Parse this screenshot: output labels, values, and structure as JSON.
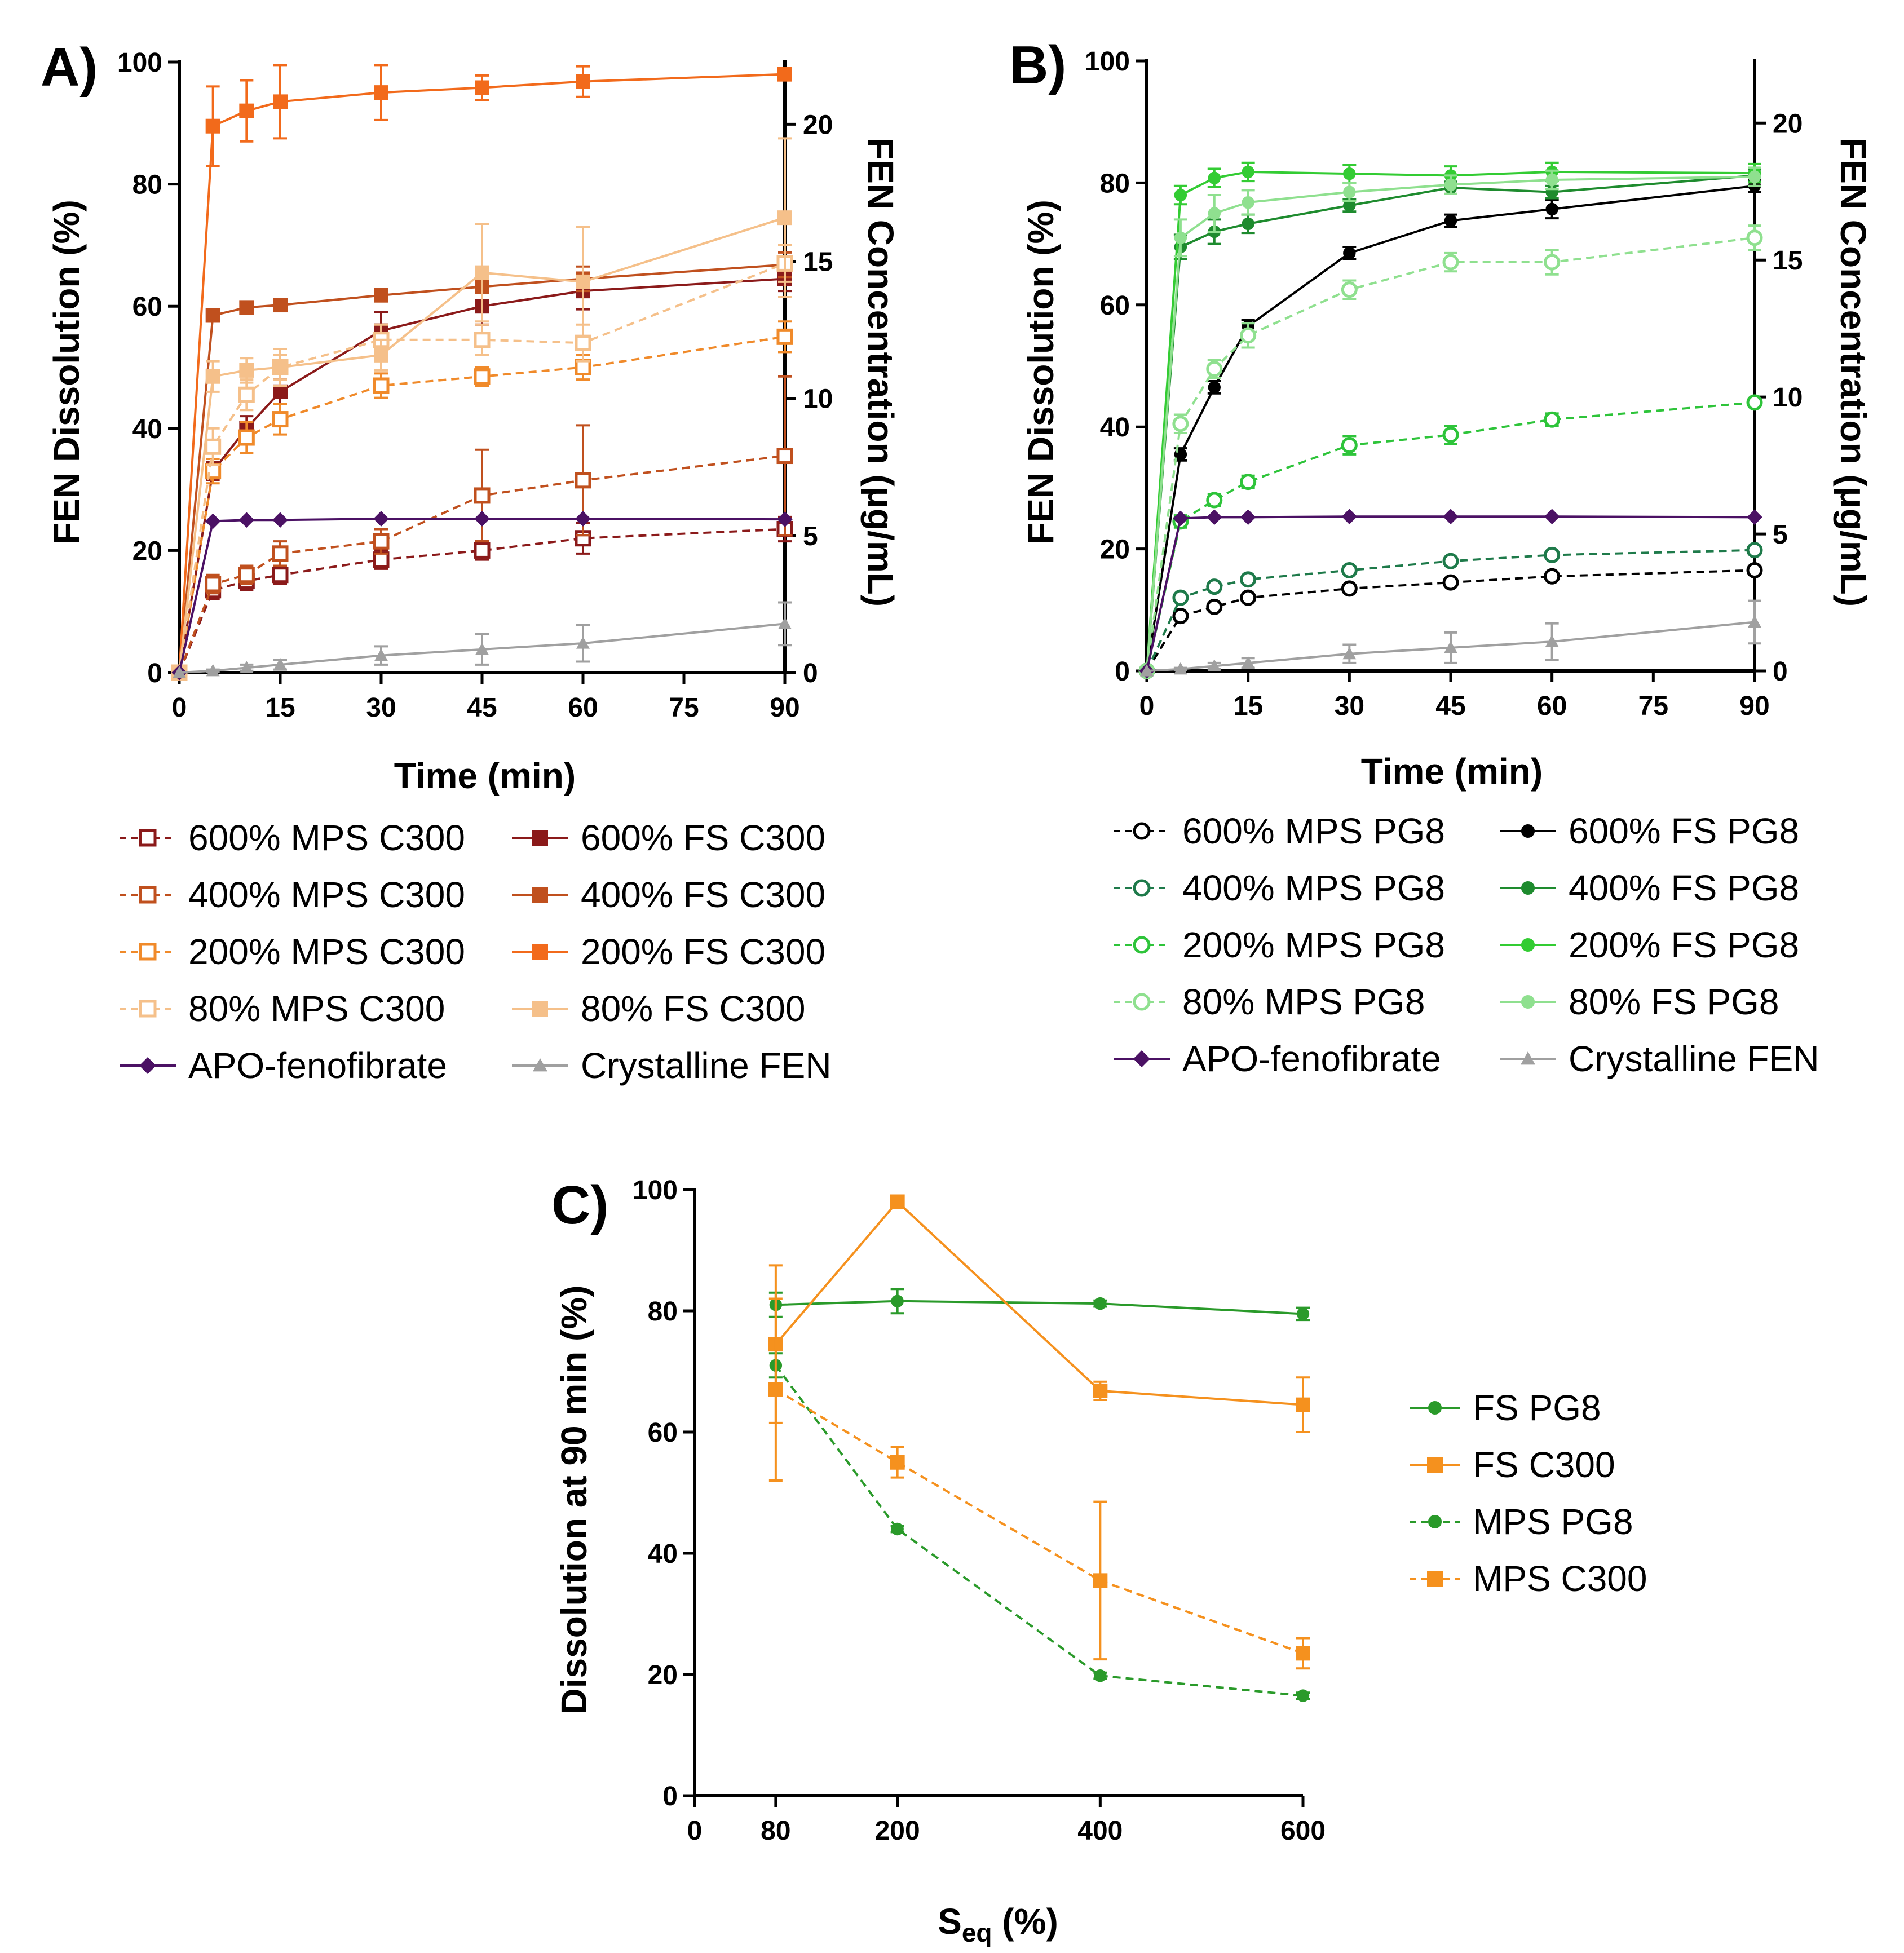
{
  "colors": {
    "mps600c": "#8B1A1A",
    "mps400c": "#C0501E",
    "mps200c": "#F08A2A",
    "mps80c": "#F5C08A",
    "fs600c": "#8B1A1A",
    "fs400c": "#C0501E",
    "fs200c": "#F26A1B",
    "fs80c": "#F5C08A",
    "apo": "#4B1164",
    "cryst": "#A0A0A0",
    "mps600p": "#000000",
    "mps400p": "#1E7A4A",
    "mps200p": "#2EC43A",
    "mps80p": "#8FE08F",
    "fs600p": "#000000",
    "fs400p": "#1E8B2E",
    "fs200p": "#33CC33",
    "fs80p": "#8FE08F",
    "fspg8c": "#2A9A2A",
    "fsc300c": "#F5911E"
  },
  "chart_data": [
    {
      "type": "line",
      "panel": "A)",
      "xlabel": "Time (min)",
      "ylabel": "FEN Dissolution (%)",
      "y2label": "FEN Concentration (μg/mL)",
      "xlim": [
        0,
        90
      ],
      "ylim": [
        0,
        100
      ],
      "y2lim": [
        0,
        22.27
      ],
      "xticks": [
        "0",
        "15",
        "30",
        "45",
        "60",
        "75",
        "90"
      ],
      "yticks": [
        "0",
        "20",
        "40",
        "60",
        "80",
        "100"
      ],
      "y2ticks": [
        "0",
        "5",
        "10",
        "15",
        "20"
      ],
      "x": [
        0,
        5,
        10,
        15,
        30,
        45,
        60,
        90
      ],
      "series": [
        {
          "name": "600% MPS C300",
          "style": "dashed",
          "marker": "open-square",
          "color_key": "mps600c",
          "values": [
            0,
            13.5,
            15,
            16,
            18.5,
            20,
            22,
            23.5
          ],
          "errors": [
            0,
            1.5,
            1.5,
            1.5,
            1.5,
            1.5,
            2.5,
            2
          ]
        },
        {
          "name": "600% FS C300",
          "style": "solid",
          "marker": "filled-square",
          "color_key": "fs600c",
          "values": [
            0,
            33,
            40,
            46,
            56,
            60,
            62.5,
            64.5
          ],
          "errors": [
            0,
            1.5,
            2,
            2,
            3,
            3,
            3,
            2
          ]
        },
        {
          "name": "400% MPS C300",
          "style": "dashed",
          "marker": "open-square",
          "color_key": "mps400c",
          "values": [
            0,
            14.5,
            16,
            19.5,
            21.5,
            29,
            31.5,
            35.5
          ],
          "errors": [
            0,
            1.5,
            1.5,
            2,
            2,
            7.5,
            9,
            13
          ]
        },
        {
          "name": "400% FS C300",
          "style": "solid",
          "marker": "filled-square",
          "color_key": "fs400c",
          "values": [
            0,
            58.5,
            59.8,
            60.2,
            61.8,
            63.2,
            64.5,
            66.8
          ],
          "errors": [
            0,
            1,
            1,
            1,
            1,
            1,
            2,
            2
          ]
        },
        {
          "name": "200% MPS C300",
          "style": "dashed",
          "marker": "open-square",
          "color_key": "mps200c",
          "values": [
            0,
            33,
            38.5,
            41.5,
            47,
            48.5,
            50,
            55
          ],
          "errors": [
            0,
            2,
            2.5,
            2.5,
            2,
            1.5,
            2,
            2.5
          ]
        },
        {
          "name": "200% FS C300",
          "style": "solid",
          "marker": "filled-square",
          "color_key": "fs200c",
          "values": [
            0,
            89.5,
            92,
            93.5,
            95,
            95.8,
            96.8,
            98
          ],
          "errors": [
            0,
            6.5,
            5,
            6,
            4.5,
            2,
            2.5,
            1
          ]
        },
        {
          "name": "80% MPS C300",
          "style": "dashed",
          "marker": "open-square",
          "color_key": "mps80c",
          "values": [
            0,
            37,
            45.5,
            50,
            54.5,
            54.5,
            54,
            67
          ],
          "errors": [
            0,
            3,
            2.5,
            3,
            2.5,
            2.5,
            3,
            3
          ]
        },
        {
          "name": "80% FS C300",
          "style": "solid",
          "marker": "filled-square",
          "color_key": "fs80c",
          "values": [
            0,
            48.5,
            49.5,
            50,
            52,
            65.5,
            64,
            74.5
          ],
          "errors": [
            0,
            2.5,
            2,
            2,
            2.5,
            8,
            9,
            13
          ]
        },
        {
          "name": "APO-fenofibrate",
          "style": "solid",
          "marker": "filled-diamond",
          "color_key": "apo",
          "values": [
            0,
            24.8,
            25,
            25,
            25.2,
            25.2,
            25.2,
            25.1
          ],
          "errors": [
            0,
            0,
            0,
            0,
            0,
            0,
            0,
            0
          ]
        },
        {
          "name": "Crystalline FEN",
          "style": "solid",
          "marker": "filled-triangle",
          "color_key": "cryst",
          "values": [
            0,
            0.3,
            0.8,
            1.3,
            2.8,
            3.8,
            4.8,
            8
          ],
          "errors": [
            0,
            0.2,
            0.5,
            0.8,
            1.5,
            2.5,
            3,
            3.5
          ]
        }
      ]
    },
    {
      "type": "line",
      "panel": "B)",
      "xlabel": "Time (min)",
      "ylabel": "FEN Dissolution (%)",
      "y2label": "FEN Concentration (μg/mL)",
      "xlim": [
        0,
        90
      ],
      "ylim": [
        0,
        100
      ],
      "y2lim": [
        0,
        22.27
      ],
      "xticks": [
        "0",
        "15",
        "30",
        "45",
        "60",
        "75",
        "90"
      ],
      "yticks": [
        "0",
        "20",
        "40",
        "60",
        "80",
        "100"
      ],
      "y2ticks": [
        "0",
        "5",
        "10",
        "15",
        "20"
      ],
      "x": [
        0,
        5,
        10,
        15,
        30,
        45,
        60,
        90
      ],
      "series": [
        {
          "name": "600% MPS PG8",
          "style": "dashed",
          "marker": "open-circle",
          "color_key": "mps600p",
          "values": [
            0,
            9,
            10.5,
            12,
            13.5,
            14.5,
            15.5,
            16.5
          ],
          "errors": [
            0,
            0.5,
            0.5,
            0.5,
            0.5,
            0.5,
            0.5,
            0.5
          ]
        },
        {
          "name": "600% FS PG8",
          "style": "solid",
          "marker": "filled-circle",
          "color_key": "fs600p",
          "values": [
            0,
            35.5,
            46.5,
            56.5,
            68.5,
            73.8,
            75.7,
            79.5
          ],
          "errors": [
            0,
            1,
            1,
            1,
            1,
            1,
            1.5,
            1
          ]
        },
        {
          "name": "400% MPS PG8",
          "style": "dashed",
          "marker": "open-circle",
          "color_key": "mps400p",
          "values": [
            0,
            12,
            13.8,
            15,
            16.5,
            18,
            19,
            19.8
          ],
          "errors": [
            0,
            0.5,
            0.5,
            0.5,
            0.5,
            0.5,
            0.5,
            0.5
          ]
        },
        {
          "name": "400% FS PG8",
          "style": "solid",
          "marker": "filled-circle",
          "color_key": "fs400p",
          "values": [
            0,
            69.5,
            72,
            73.3,
            76.3,
            79.2,
            78.5,
            81.2
          ],
          "errors": [
            0,
            2,
            2,
            1.5,
            1,
            1,
            1,
            1
          ]
        },
        {
          "name": "200% MPS PG8",
          "style": "dashed",
          "marker": "open-circle",
          "color_key": "mps200p",
          "values": [
            0,
            24.5,
            28,
            31,
            37,
            38.7,
            41.2,
            44
          ],
          "errors": [
            0,
            1,
            1,
            1,
            1.5,
            1.5,
            1,
            0.5
          ]
        },
        {
          "name": "200% FS PG8",
          "style": "solid",
          "marker": "filled-circle",
          "color_key": "fs200p",
          "values": [
            0,
            78,
            80.8,
            81.8,
            81.5,
            81.2,
            81.8,
            81.6
          ],
          "errors": [
            0,
            1.5,
            1.5,
            1.5,
            1.5,
            1.5,
            1.5,
            1.5
          ]
        },
        {
          "name": "80% MPS PG8",
          "style": "dashed",
          "marker": "open-circle",
          "color_key": "mps80p",
          "values": [
            0,
            40.5,
            49.5,
            55,
            62.5,
            67,
            67,
            71
          ],
          "errors": [
            0,
            1.5,
            1.5,
            2,
            1.5,
            1.5,
            2,
            2
          ]
        },
        {
          "name": "80% FS PG8",
          "style": "solid",
          "marker": "filled-circle",
          "color_key": "fs80p",
          "values": [
            0,
            71,
            75,
            76.8,
            78.5,
            79.7,
            80.5,
            81
          ],
          "errors": [
            0,
            3,
            3,
            2,
            1.5,
            1.5,
            1.5,
            1.5
          ]
        },
        {
          "name": "APO-fenofibrate",
          "style": "solid",
          "marker": "filled-diamond",
          "color_key": "apo",
          "values": [
            0,
            25,
            25.2,
            25.2,
            25.3,
            25.3,
            25.3,
            25.2
          ],
          "errors": [
            0,
            0,
            0,
            0,
            0,
            0,
            0,
            0
          ]
        },
        {
          "name": "Crystalline FEN",
          "style": "solid",
          "marker": "filled-triangle",
          "color_key": "cryst",
          "values": [
            0,
            0.3,
            0.8,
            1.3,
            2.8,
            3.8,
            4.8,
            8
          ],
          "errors": [
            0,
            0.2,
            0.5,
            0.8,
            1.5,
            2.5,
            3,
            3.5
          ]
        }
      ]
    },
    {
      "type": "line",
      "panel": "C)",
      "xlabel_main": "S",
      "xlabel_sub": "eq",
      "xlabel_tail": " (%)",
      "ylabel": "Dissolution at 90 min (%)",
      "xlim": [
        0,
        600
      ],
      "ylim": [
        0,
        100
      ],
      "xticks": [
        "0",
        "80",
        "200",
        "400",
        "600"
      ],
      "yticks": [
        "0",
        "20",
        "40",
        "60",
        "80",
        "100"
      ],
      "x": [
        80,
        200,
        400,
        600
      ],
      "series": [
        {
          "name": "FS PG8",
          "style": "solid",
          "marker": "filled-circle",
          "color_key": "fspg8c",
          "values": [
            81,
            81.6,
            81.2,
            79.5
          ],
          "errors": [
            2,
            2,
            0.5,
            1
          ]
        },
        {
          "name": "FS C300",
          "style": "solid",
          "marker": "filled-square",
          "color_key": "fsc300c",
          "values": [
            74.5,
            98,
            66.8,
            64.5
          ],
          "errors": [
            13,
            1,
            1.5,
            4.5
          ]
        },
        {
          "name": "MPS PG8",
          "style": "dashed",
          "marker": "filled-circle",
          "color_key": "fspg8c",
          "values": [
            71,
            44,
            19.8,
            16.5
          ],
          "errors": [
            2,
            0.5,
            0.5,
            0.5
          ]
        },
        {
          "name": "MPS C300",
          "style": "dashed",
          "marker": "filled-square",
          "color_key": "fsc300c",
          "values": [
            67,
            55,
            35.5,
            23.5
          ],
          "errors": [
            15,
            2.5,
            13,
            2.5
          ]
        }
      ]
    }
  ]
}
